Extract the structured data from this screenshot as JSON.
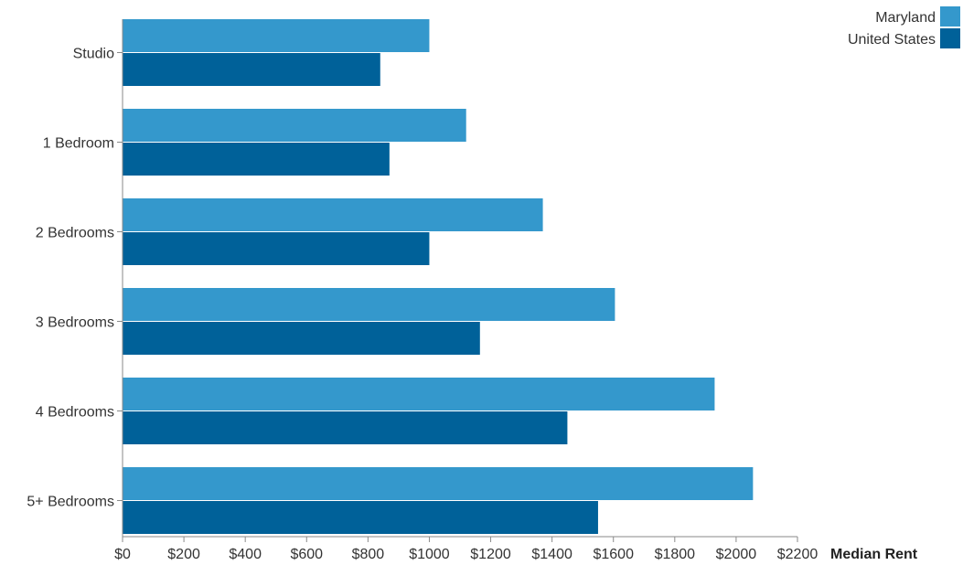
{
  "chart_data": {
    "type": "bar",
    "orientation": "horizontal",
    "categories": [
      "Studio",
      "1 Bedroom",
      "2 Bedrooms",
      "3 Bedrooms",
      "4 Bedrooms",
      "5+ Bedrooms"
    ],
    "series": [
      {
        "name": "Maryland",
        "color": "#3498cc",
        "values": [
          1000,
          1120,
          1370,
          1605,
          1930,
          2055
        ]
      },
      {
        "name": "United States",
        "color": "#006199",
        "values": [
          840,
          870,
          1000,
          1165,
          1450,
          1550
        ]
      }
    ],
    "xlabel": "Median Rent",
    "xlim": [
      0,
      2200
    ],
    "xticks": [
      0,
      200,
      400,
      600,
      800,
      1000,
      1200,
      1400,
      1600,
      1800,
      2000,
      2200
    ],
    "xtick_labels": [
      "$0",
      "$200",
      "$400",
      "$600",
      "$800",
      "$1000",
      "$1200",
      "$1400",
      "$1600",
      "$1800",
      "$2000",
      "$2200"
    ],
    "grid": false,
    "legend_position": "top-right"
  }
}
